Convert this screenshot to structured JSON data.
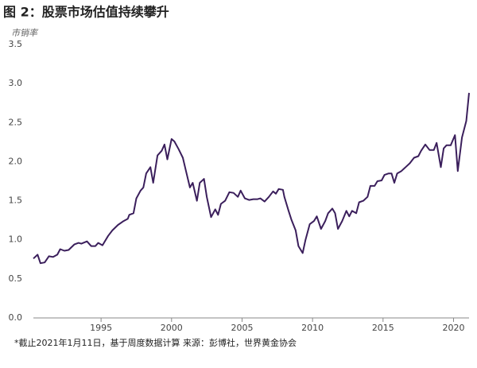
{
  "chart_data": {
    "type": "line",
    "title": "图 2：股票市场估值持续攀升",
    "y_label": "市销率",
    "footnote": "*截止2021年1月11日，基于周度数据计算 来源：彭博社，世界黄金协会",
    "x": [
      1990.2,
      1990.5,
      1990.7,
      1991.0,
      1991.3,
      1991.6,
      1991.9,
      1992.1,
      1992.4,
      1992.7,
      1993.1,
      1993.4,
      1993.6,
      1994.0,
      1994.3,
      1994.6,
      1994.8,
      1995.1,
      1995.5,
      1995.8,
      1996.2,
      1996.6,
      1996.9,
      1997.0,
      1997.3,
      1997.5,
      1997.8,
      1998.0,
      1998.2,
      1998.5,
      1998.7,
      1999.0,
      1999.3,
      1999.5,
      1999.7,
      2000.0,
      2000.2,
      2000.5,
      2000.8,
      2001.0,
      2001.3,
      2001.5,
      2001.8,
      2002.0,
      2002.3,
      2002.5,
      2002.8,
      2003.1,
      2003.3,
      2003.5,
      2003.8,
      2004.1,
      2004.4,
      2004.7,
      2004.9,
      2005.2,
      2005.5,
      2005.8,
      2006.1,
      2006.3,
      2006.6,
      2006.9,
      2007.2,
      2007.4,
      2007.6,
      2007.9,
      2008.0,
      2008.3,
      2008.5,
      2008.8,
      2009.0,
      2009.3,
      2009.5,
      2009.8,
      2010.1,
      2010.3,
      2010.6,
      2010.9,
      2011.1,
      2011.4,
      2011.6,
      2011.8,
      2012.1,
      2012.4,
      2012.6,
      2012.8,
      2013.1,
      2013.3,
      2013.6,
      2013.9,
      2014.1,
      2014.4,
      2014.6,
      2014.9,
      2015.1,
      2015.4,
      2015.6,
      2015.8,
      2016.0,
      2016.3,
      2016.6,
      2016.9,
      2017.2,
      2017.5,
      2017.7,
      2018.0,
      2018.3,
      2018.6,
      2018.8,
      2019.1,
      2019.3,
      2019.5,
      2019.8,
      2020.1,
      2020.3,
      2020.6,
      2020.9,
      2021.1
    ],
    "series": [
      {
        "color": "#3b1f5c",
        "values": [
          0.76,
          0.81,
          0.7,
          0.71,
          0.79,
          0.78,
          0.81,
          0.88,
          0.86,
          0.87,
          0.94,
          0.96,
          0.95,
          0.98,
          0.92,
          0.92,
          0.96,
          0.93,
          1.05,
          1.12,
          1.19,
          1.24,
          1.27,
          1.32,
          1.34,
          1.53,
          1.63,
          1.67,
          1.85,
          1.93,
          1.73,
          2.08,
          2.14,
          2.22,
          2.03,
          2.29,
          2.26,
          2.16,
          2.05,
          1.9,
          1.67,
          1.73,
          1.5,
          1.73,
          1.78,
          1.55,
          1.29,
          1.39,
          1.32,
          1.46,
          1.5,
          1.61,
          1.6,
          1.55,
          1.63,
          1.53,
          1.51,
          1.52,
          1.52,
          1.53,
          1.49,
          1.55,
          1.62,
          1.59,
          1.65,
          1.64,
          1.55,
          1.37,
          1.26,
          1.12,
          0.92,
          0.83,
          1.0,
          1.2,
          1.24,
          1.3,
          1.14,
          1.24,
          1.34,
          1.4,
          1.34,
          1.14,
          1.24,
          1.37,
          1.3,
          1.37,
          1.34,
          1.48,
          1.5,
          1.55,
          1.69,
          1.69,
          1.75,
          1.76,
          1.83,
          1.85,
          1.85,
          1.73,
          1.85,
          1.88,
          1.93,
          1.98,
          2.05,
          2.07,
          2.14,
          2.22,
          2.15,
          2.15,
          2.24,
          1.93,
          2.17,
          2.21,
          2.21,
          2.34,
          1.88,
          2.31,
          2.52,
          2.88
        ]
      }
    ],
    "xlim": [
      1990.2,
      2021.1
    ],
    "xticks": [
      1995,
      2000,
      2005,
      2010,
      2015,
      2020
    ],
    "ylim": [
      0,
      3.5
    ],
    "yticks": [
      {
        "value": 0,
        "label": "0.0"
      },
      {
        "value": 0.5,
        "label": "0.5"
      },
      {
        "value": 1,
        "label": "1.0"
      },
      {
        "value": 1.5,
        "label": "1.5"
      },
      {
        "value": 2,
        "label": "2.0"
      },
      {
        "value": 2.5,
        "label": "2.5"
      },
      {
        "value": 3,
        "label": "3.0"
      },
      {
        "value": 3.5,
        "label": "3.5"
      }
    ]
  }
}
